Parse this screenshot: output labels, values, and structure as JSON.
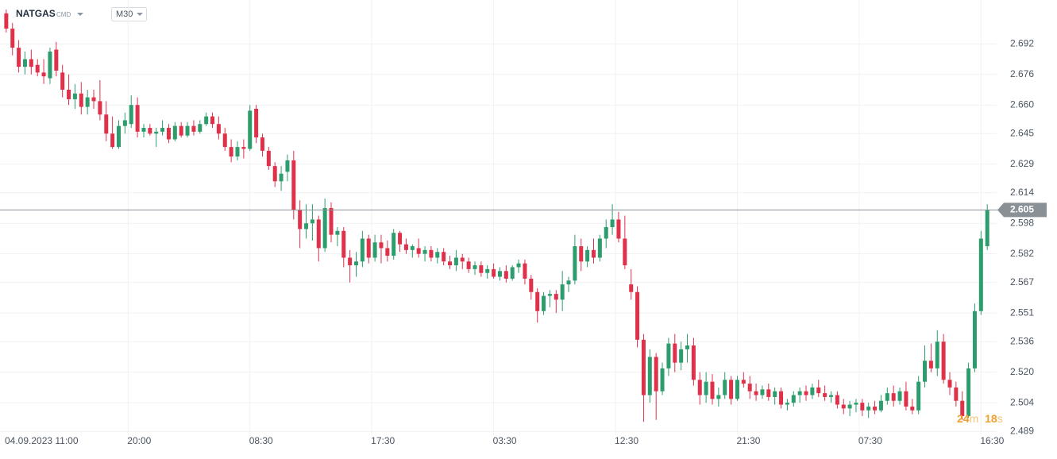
{
  "chart_data": {
    "type": "candlestick",
    "symbol": "NATGAS",
    "symbol_suffix": "CMD",
    "timeframe": "M30",
    "up_color": "#2e9d6d",
    "down_color": "#e0314b",
    "grid": true,
    "last_price": 2.605,
    "countdown": {
      "minutes": "24",
      "minutes_unit": "m",
      "seconds": "18",
      "seconds_unit": "s"
    },
    "ylim": [
      2.487,
      2.715
    ],
    "yticks": [
      2.692,
      2.676,
      {
        "value": 2.66,
        "label": "2.660"
      },
      2.645,
      2.629,
      2.614,
      2.598,
      2.582,
      2.567,
      2.551,
      2.536,
      {
        "value": 2.52,
        "label": "2.520"
      },
      2.504,
      2.489
    ],
    "xlim": [
      -1,
      158.5
    ],
    "xticks": [
      {
        "value": 0,
        "label": "04.09.2023  11:00"
      },
      {
        "value": 19.5,
        "label": "20:00"
      },
      {
        "value": 39,
        "label": "08:30"
      },
      {
        "value": 58.5,
        "label": "17:30"
      },
      {
        "value": 78,
        "label": "03:30"
      },
      {
        "value": 97.5,
        "label": "12:30"
      },
      {
        "value": 117,
        "label": "21:30"
      },
      {
        "value": 136.5,
        "label": "07:30"
      },
      {
        "value": 156,
        "label": "16:30"
      }
    ],
    "open": [
      2.708,
      2.7,
      2.69,
      2.68,
      2.684,
      2.681,
      2.677,
      2.674,
      2.689,
      2.677,
      2.668,
      2.663,
      2.666,
      2.659,
      2.664,
      2.662,
      2.655,
      2.645,
      2.638,
      2.649,
      2.65,
      2.66,
      2.646,
      2.648,
      2.645,
      2.646,
      2.648,
      2.642,
      2.649,
      2.644,
      2.649,
      2.646,
      2.65,
      2.654,
      2.65,
      2.645,
      2.638,
      2.633,
      2.638,
      2.637,
      2.658,
      2.643,
      2.636,
      2.628,
      2.62,
      2.625,
      2.631,
      2.605,
      2.595,
      2.598,
      2.6,
      2.585,
      2.606,
      2.592,
      2.594,
      2.58,
      2.576,
      2.578,
      2.59,
      2.58,
      2.588,
      2.585,
      2.581,
      2.593,
      2.587,
      2.584,
      2.585,
      2.582,
      2.584,
      2.58,
      2.583,
      2.578,
      2.576,
      2.58,
      2.578,
      2.574,
      2.576,
      2.572,
      2.574,
      2.57,
      2.573,
      2.569,
      2.575,
      2.577,
      2.569,
      2.562,
      2.552,
      2.56,
      2.561,
      2.558,
      2.566,
      2.568,
      2.586,
      2.578,
      2.584,
      2.58,
      2.59,
      2.596,
      2.6,
      2.59,
      2.566,
      2.562,
      2.537,
      2.508,
      2.528,
      2.51,
      2.522,
      2.535,
      2.525,
      2.532,
      2.534,
      2.516,
      2.508,
      2.515,
      2.506,
      2.508,
      2.516,
      2.506,
      2.516,
      2.514,
      2.51,
      2.508,
      2.511,
      2.507,
      2.51,
      2.503,
      2.504,
      2.508,
      2.51,
      2.508,
      2.512,
      2.509,
      2.507,
      2.508,
      2.503,
      2.501,
      2.503,
      2.504,
      2.5,
      2.502,
      2.5,
      2.505,
      2.509,
      2.505,
      2.51,
      2.502,
      2.5,
      2.515,
      2.526,
      2.522,
      2.536,
      2.516,
      2.512,
      2.505,
      2.497,
      2.522,
      2.552,
      2.586
    ],
    "high": [
      2.71,
      2.703,
      2.694,
      2.688,
      2.689,
      2.684,
      2.684,
      2.69,
      2.693,
      2.681,
      2.676,
      2.671,
      2.672,
      2.668,
      2.668,
      2.673,
      2.662,
      2.654,
      2.652,
      2.656,
      2.665,
      2.664,
      2.65,
      2.65,
      2.648,
      2.652,
      2.65,
      2.651,
      2.651,
      2.651,
      2.652,
      2.652,
      2.656,
      2.656,
      2.654,
      2.648,
      2.642,
      2.641,
      2.642,
      2.66,
      2.66,
      2.645,
      2.638,
      2.63,
      2.628,
      2.634,
      2.636,
      2.61,
      2.608,
      2.608,
      2.602,
      2.611,
      2.609,
      2.596,
      2.596,
      2.584,
      2.583,
      2.594,
      2.592,
      2.592,
      2.592,
      2.589,
      2.595,
      2.594,
      2.59,
      2.587,
      2.59,
      2.586,
      2.586,
      2.585,
      2.585,
      2.581,
      2.584,
      2.582,
      2.58,
      2.578,
      2.578,
      2.576,
      2.577,
      2.575,
      2.576,
      2.576,
      2.579,
      2.579,
      2.571,
      2.564,
      2.562,
      2.563,
      2.563,
      2.573,
      2.57,
      2.592,
      2.59,
      2.586,
      2.59,
      2.592,
      2.6,
      2.608,
      2.604,
      2.602,
      2.574,
      2.565,
      2.54,
      2.532,
      2.53,
      2.525,
      2.538,
      2.54,
      2.536,
      2.54,
      2.538,
      2.52,
      2.52,
      2.519,
      2.512,
      2.52,
      2.518,
      2.518,
      2.52,
      2.518,
      2.514,
      2.513,
      2.514,
      2.512,
      2.512,
      2.506,
      2.51,
      2.512,
      2.513,
      2.514,
      2.516,
      2.513,
      2.51,
      2.51,
      2.506,
      2.505,
      2.506,
      2.506,
      2.504,
      2.505,
      2.508,
      2.512,
      2.513,
      2.512,
      2.515,
      2.506,
      2.518,
      2.534,
      2.535,
      2.542,
      2.54,
      2.52,
      2.515,
      2.51,
      2.525,
      2.556,
      2.594,
      2.608
    ],
    "low": [
      2.698,
      2.686,
      2.677,
      2.676,
      2.676,
      2.675,
      2.671,
      2.671,
      2.675,
      2.664,
      2.66,
      2.658,
      2.655,
      2.655,
      2.658,
      2.652,
      2.641,
      2.637,
      2.637,
      2.645,
      2.648,
      2.643,
      2.643,
      2.644,
      2.638,
      2.644,
      2.64,
      2.641,
      2.643,
      2.643,
      2.644,
      2.645,
      2.649,
      2.648,
      2.642,
      2.636,
      2.63,
      2.631,
      2.632,
      2.636,
      2.64,
      2.633,
      2.626,
      2.617,
      2.615,
      2.62,
      2.6,
      2.585,
      2.59,
      2.589,
      2.578,
      2.583,
      2.588,
      2.586,
      2.575,
      2.567,
      2.57,
      2.575,
      2.577,
      2.578,
      2.577,
      2.578,
      2.579,
      2.583,
      2.582,
      2.58,
      2.58,
      2.578,
      2.578,
      2.577,
      2.576,
      2.574,
      2.573,
      2.574,
      2.572,
      2.571,
      2.57,
      2.569,
      2.569,
      2.568,
      2.567,
      2.568,
      2.572,
      2.566,
      2.558,
      2.546,
      2.55,
      2.554,
      2.551,
      2.552,
      2.562,
      2.566,
      2.573,
      2.575,
      2.577,
      2.578,
      2.585,
      2.592,
      2.588,
      2.574,
      2.558,
      2.533,
      2.494,
      2.504,
      2.495,
      2.508,
      2.518,
      2.52,
      2.521,
      2.525,
      2.513,
      2.503,
      2.504,
      2.503,
      2.502,
      2.506,
      2.503,
      2.505,
      2.512,
      2.506,
      2.505,
      2.506,
      2.505,
      2.503,
      2.501,
      2.5,
      2.502,
      2.504,
      2.505,
      2.506,
      2.507,
      2.505,
      2.504,
      2.501,
      2.498,
      2.497,
      2.499,
      2.497,
      2.496,
      2.498,
      2.499,
      2.503,
      2.502,
      2.503,
      2.5,
      2.498,
      2.498,
      2.512,
      2.52,
      2.518,
      2.514,
      2.508,
      2.502,
      2.495,
      2.496,
      2.52,
      2.55,
      2.584
    ],
    "close": [
      2.7,
      2.69,
      2.68,
      2.684,
      2.68,
      2.677,
      2.675,
      2.688,
      2.678,
      2.668,
      2.663,
      2.666,
      2.659,
      2.664,
      2.662,
      2.655,
      2.645,
      2.638,
      2.649,
      2.652,
      2.66,
      2.646,
      2.648,
      2.645,
      2.646,
      2.648,
      2.642,
      2.649,
      2.644,
      2.649,
      2.646,
      2.65,
      2.654,
      2.65,
      2.645,
      2.638,
      2.633,
      2.638,
      2.637,
      2.657,
      2.643,
      2.636,
      2.628,
      2.62,
      2.624,
      2.631,
      2.605,
      2.595,
      2.598,
      2.6,
      2.585,
      2.606,
      2.592,
      2.594,
      2.58,
      2.576,
      2.578,
      2.59,
      2.58,
      2.588,
      2.585,
      2.581,
      2.593,
      2.587,
      2.584,
      2.586,
      2.582,
      2.584,
      2.58,
      2.583,
      2.578,
      2.576,
      2.58,
      2.578,
      2.574,
      2.576,
      2.572,
      2.574,
      2.57,
      2.573,
      2.569,
      2.575,
      2.577,
      2.569,
      2.562,
      2.552,
      2.56,
      2.561,
      2.558,
      2.566,
      2.568,
      2.586,
      2.578,
      2.584,
      2.58,
      2.59,
      2.596,
      2.6,
      2.59,
      2.576,
      2.562,
      2.537,
      2.508,
      2.528,
      2.51,
      2.522,
      2.535,
      2.525,
      2.532,
      2.534,
      2.516,
      2.508,
      2.515,
      2.506,
      2.508,
      2.516,
      2.506,
      2.516,
      2.514,
      2.51,
      2.508,
      2.511,
      2.507,
      2.51,
      2.503,
      2.504,
      2.508,
      2.51,
      2.508,
      2.512,
      2.509,
      2.507,
      2.508,
      2.503,
      2.501,
      2.503,
      2.504,
      2.5,
      2.502,
      2.5,
      2.505,
      2.509,
      2.505,
      2.51,
      2.502,
      2.5,
      2.515,
      2.526,
      2.522,
      2.536,
      2.516,
      2.512,
      2.505,
      2.497,
      2.522,
      2.552,
      2.59,
      2.605
    ]
  }
}
